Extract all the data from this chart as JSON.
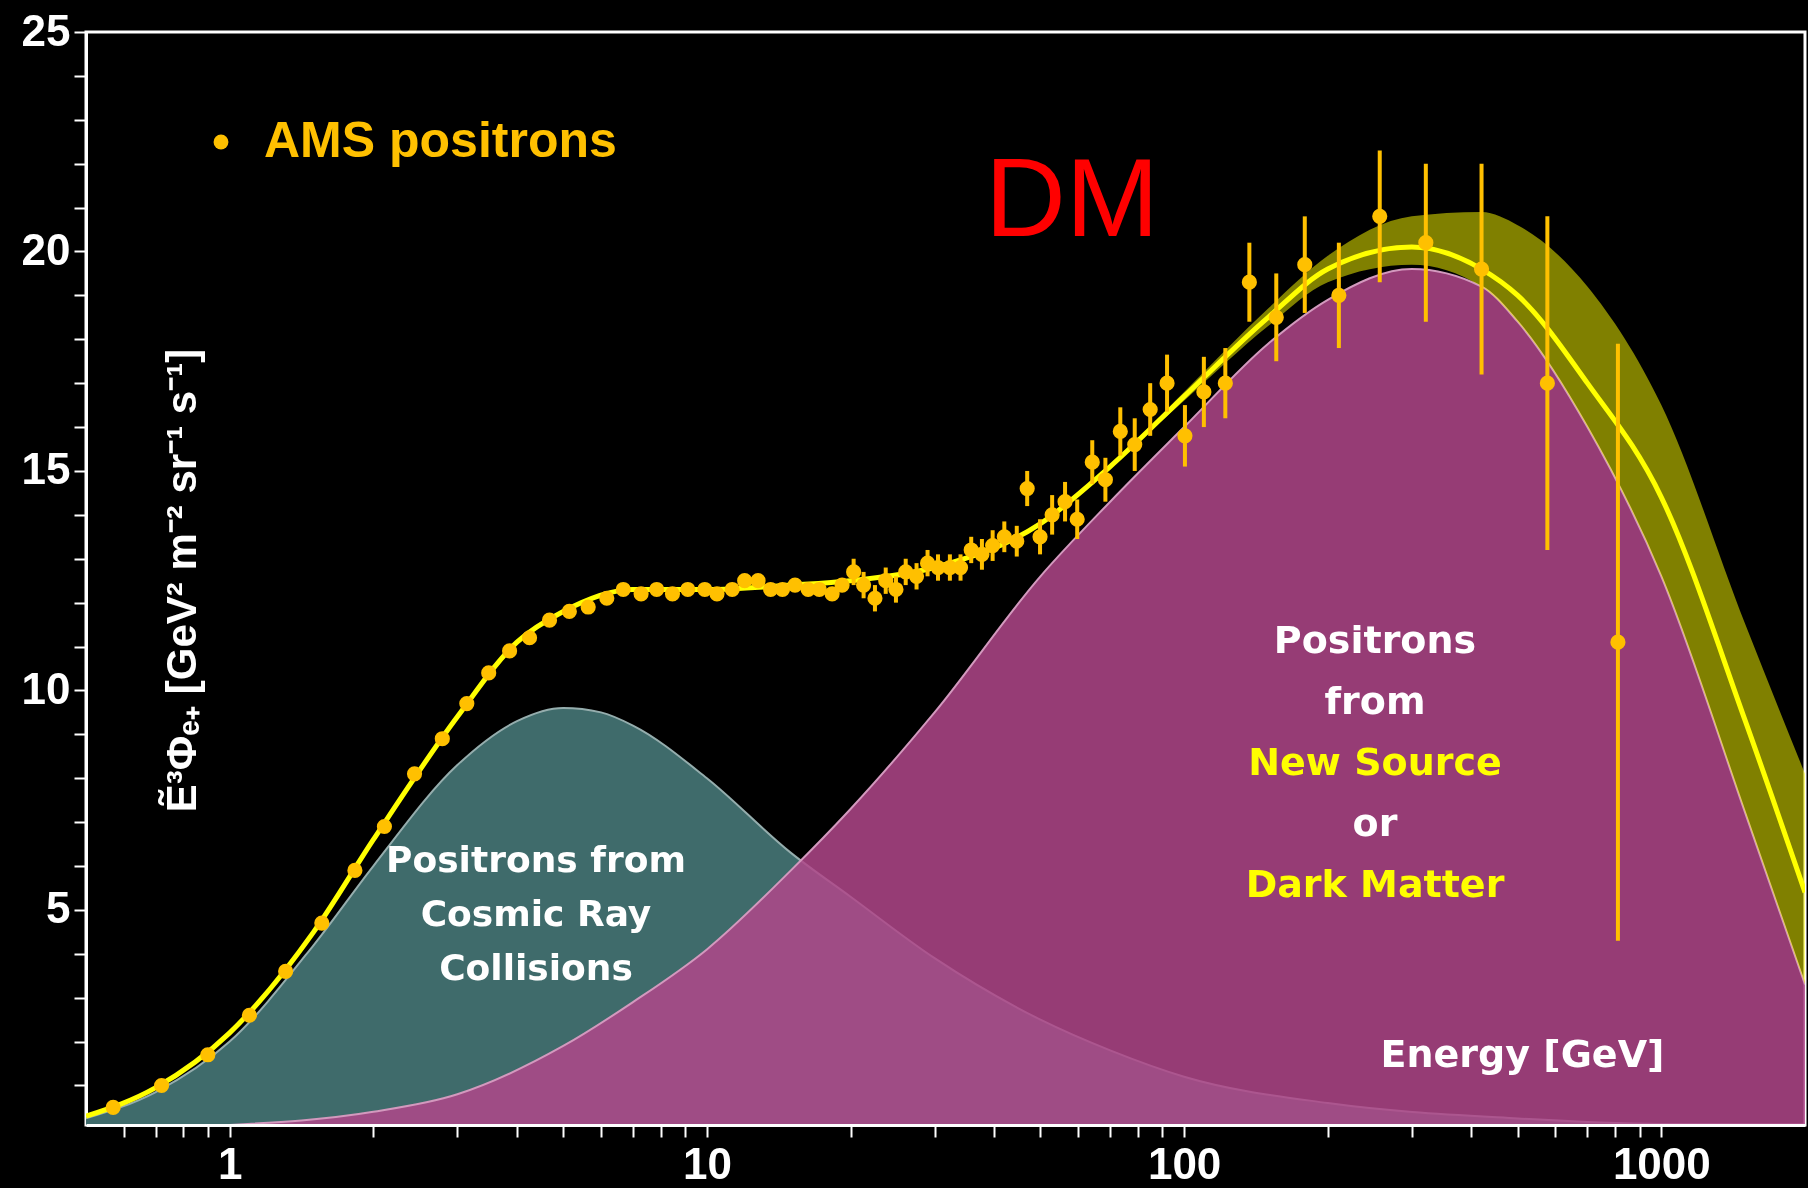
{
  "chart_data": {
    "type": "line",
    "xlabel": "Energy [GeV]",
    "ylabel": "Ẽ³Φₑ₊ [GeV² m⁻² sr⁻¹ s⁻¹]",
    "log": "x",
    "legend": "top left",
    "xlim": [
      0.5,
      2000
    ],
    "ylim": [
      0.1,
      25
    ],
    "xticks": [
      {
        "value": 0.6,
        "label": null
      },
      {
        "value": 0.7,
        "label": null
      },
      {
        "value": 0.8,
        "label": null
      },
      {
        "value": 0.9,
        "label": null
      },
      1,
      {
        "value": 2,
        "label": null
      },
      {
        "value": 3,
        "label": null
      },
      {
        "value": 4,
        "label": null
      },
      {
        "value": 5,
        "label": null
      },
      {
        "value": 6,
        "label": null
      },
      {
        "value": 7,
        "label": null
      },
      {
        "value": 8,
        "label": null
      },
      {
        "value": 9,
        "label": null
      },
      10,
      {
        "value": 20,
        "label": null
      },
      {
        "value": 30,
        "label": null
      },
      {
        "value": 40,
        "label": null
      },
      {
        "value": 50,
        "label": null
      },
      {
        "value": 60,
        "label": null
      },
      {
        "value": 70,
        "label": null
      },
      {
        "value": 80,
        "label": null
      },
      {
        "value": 90,
        "label": null
      },
      100,
      {
        "value": 200,
        "label": null
      },
      {
        "value": 300,
        "label": null
      },
      {
        "value": 400,
        "label": null
      },
      {
        "value": 500,
        "label": null
      },
      {
        "value": 600,
        "label": null
      },
      {
        "value": 700,
        "label": null
      },
      {
        "value": 800,
        "label": null
      },
      {
        "value": 900,
        "label": null
      },
      1000
    ],
    "yticks": [
      {
        "value": 1,
        "label": null
      },
      {
        "value": 2,
        "label": null
      },
      {
        "value": 3,
        "label": null
      },
      {
        "value": 4,
        "label": null
      },
      5,
      {
        "value": 6,
        "label": null
      },
      {
        "value": 7,
        "label": null
      },
      {
        "value": 8,
        "label": null
      },
      {
        "value": 9,
        "label": null
      },
      10,
      {
        "value": 11,
        "label": null
      },
      {
        "value": 12,
        "label": null
      },
      {
        "value": 13,
        "label": null
      },
      {
        "value": 14,
        "label": null
      },
      15,
      {
        "value": 16,
        "label": null
      },
      {
        "value": 17,
        "label": null
      },
      {
        "value": 18,
        "label": null
      },
      {
        "value": 19,
        "label": null
      },
      20,
      {
        "value": 21,
        "label": null
      },
      {
        "value": 22,
        "label": null
      },
      {
        "value": 23,
        "label": null
      },
      {
        "value": 24,
        "label": null
      },
      25
    ],
    "annotations": [
      "DM",
      "Positrons from\nCosmic Ray\nCollisions",
      "Positrons\nfrom\nNew Source\nor\nDark Matter"
    ],
    "series": [
      {
        "type": "area",
        "color": "#3f6b6b",
        "x": [
          0.5,
          0.7,
          1,
          1.5,
          2,
          3,
          4,
          5,
          6,
          7,
          10,
          15,
          20,
          30,
          50,
          70,
          100,
          200,
          500,
          1000,
          2000
        ],
        "values": [
          0.25,
          0.85,
          2.0,
          4.2,
          6.0,
          8.3,
          9.3,
          9.6,
          9.5,
          9.2,
          8.0,
          6.3,
          5.3,
          3.9,
          2.5,
          1.8,
          1.2,
          0.6,
          0.25,
          0.12,
          0.1
        ]
      },
      {
        "type": "area",
        "color": "#b0468a",
        "x": [
          1,
          2,
          3,
          5,
          7,
          10,
          15,
          20,
          30,
          50,
          70,
          100,
          150,
          200,
          300,
          420,
          500,
          700,
          1000,
          1500,
          2000
        ],
        "values": [
          0.1,
          0.4,
          0.8,
          1.9,
          2.9,
          4.1,
          5.9,
          7.3,
          9.5,
          12.6,
          14.3,
          16.0,
          17.9,
          18.9,
          19.6,
          19.2,
          18.4,
          16.0,
          12.6,
          7.2,
          3.3
        ]
      },
      {
        "color": "#ffff00",
        "x": [
          0.5,
          0.7,
          1,
          1.5,
          2,
          3,
          4,
          5,
          7,
          10,
          15,
          20,
          30,
          50,
          70,
          100,
          150,
          200,
          300,
          420,
          500,
          700,
          1000,
          1500,
          2000
        ],
        "values": [
          0.3,
          0.95,
          2.2,
          4.5,
          6.6,
          9.4,
          11.1,
          11.8,
          12.3,
          12.3,
          12.4,
          12.5,
          12.8,
          13.8,
          15.1,
          16.7,
          18.5,
          19.6,
          20.1,
          19.6,
          19.0,
          17.0,
          14.4,
          9.3,
          5.4
        ],
        "lower": [
          0.3,
          0.95,
          2.2,
          4.5,
          6.6,
          9.4,
          11.1,
          11.8,
          12.3,
          12.3,
          12.4,
          12.5,
          12.8,
          13.8,
          15.1,
          16.6,
          18.3,
          19.3,
          19.7,
          19.2,
          18.4,
          16.0,
          12.6,
          7.2,
          3.3
        ],
        "upper": [
          0.3,
          0.95,
          2.2,
          4.5,
          6.6,
          9.4,
          11.1,
          11.8,
          12.3,
          12.3,
          12.4,
          12.5,
          12.8,
          13.8,
          15.1,
          16.8,
          18.7,
          19.9,
          20.8,
          20.9,
          20.6,
          19.2,
          16.5,
          11.5,
          8.1
        ]
      },
      {
        "type": "scatter",
        "name": "AMS positrons",
        "color": "#ffc000",
        "x": [
          0.57,
          0.72,
          0.9,
          1.1,
          1.31,
          1.56,
          1.83,
          2.11,
          2.44,
          2.79,
          3.14,
          3.49,
          3.86,
          4.25,
          4.68,
          5.15,
          5.64,
          6.17,
          6.68,
          7.28,
          7.85,
          8.47,
          9.12,
          9.9,
          10.5,
          11.3,
          12.0,
          12.8,
          13.6,
          14.4,
          15.3,
          16.3,
          17.2,
          18.3,
          19.2,
          20.3,
          21.3,
          22.5,
          23.7,
          24.9,
          26.1,
          27.5,
          29.0,
          30.5,
          32.3,
          34.0,
          35.8,
          37.7,
          39.7,
          42.0,
          44.6,
          46.9,
          49.9,
          52.9,
          56.3,
          59.7,
          64.2,
          68.4,
          73.5,
          78.8,
          84.9,
          92.1,
          100.4,
          110,
          122,
          137,
          156,
          179,
          211,
          257,
          321,
          420,
          577,
          811
        ],
        "values": [
          0.5,
          1.0,
          1.7,
          2.6,
          3.6,
          4.7,
          5.9,
          6.9,
          8.1,
          8.9,
          9.7,
          10.4,
          10.9,
          11.2,
          11.6,
          11.8,
          11.9,
          12.1,
          12.3,
          12.2,
          12.3,
          12.2,
          12.3,
          12.3,
          12.2,
          12.3,
          12.5,
          12.5,
          12.3,
          12.3,
          12.4,
          12.3,
          12.3,
          12.2,
          12.4,
          12.7,
          12.4,
          12.1,
          12.5,
          12.3,
          12.7,
          12.6,
          12.9,
          12.8,
          12.8,
          12.8,
          13.2,
          13.1,
          13.3,
          13.5,
          13.4,
          14.6,
          13.5,
          14.0,
          14.3,
          13.9,
          15.2,
          14.8,
          15.9,
          15.6,
          16.4,
          17.0,
          15.8,
          16.8,
          17.0,
          19.3,
          18.5,
          19.7,
          19.0,
          20.8,
          20.2,
          19.6,
          17.0,
          11.1
        ],
        "errors": [
          null,
          null,
          null,
          null,
          null,
          null,
          null,
          null,
          null,
          null,
          null,
          null,
          null,
          null,
          null,
          null,
          null,
          null,
          null,
          null,
          null,
          null,
          null,
          null,
          null,
          null,
          null,
          null,
          null,
          null,
          null,
          null,
          null,
          null,
          null,
          0.3,
          0.3,
          0.3,
          0.3,
          0.3,
          0.3,
          0.3,
          0.3,
          0.3,
          0.3,
          0.3,
          0.3,
          0.35,
          0.35,
          0.35,
          0.35,
          0.4,
          0.4,
          0.45,
          0.45,
          0.45,
          0.5,
          0.5,
          0.55,
          0.6,
          0.6,
          0.65,
          0.7,
          0.8,
          0.8,
          0.9,
          1.0,
          1.1,
          1.2,
          1.5,
          1.8,
          2.4,
          3.8,
          6.8
        ]
      }
    ]
  }
}
